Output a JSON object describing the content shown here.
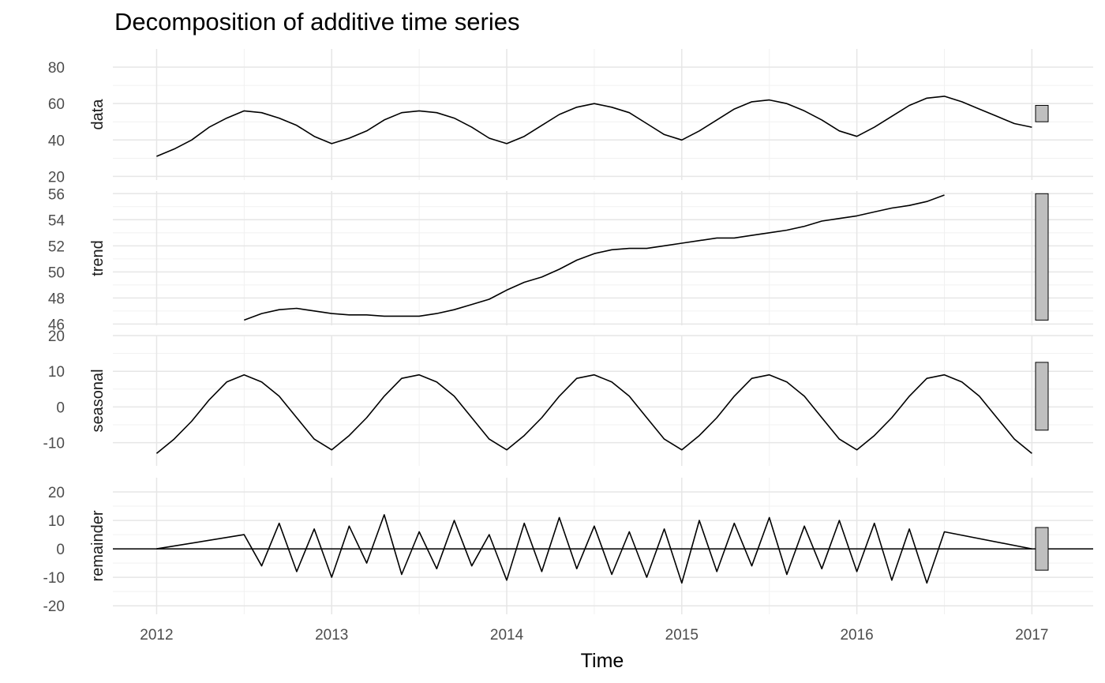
{
  "chart_data": {
    "type": "line",
    "title": "Decomposition of additive time series",
    "xlabel": "Time",
    "x_ticks": [
      2012,
      2013,
      2014,
      2015,
      2016,
      2017
    ],
    "xlim": [
      2011.75,
      2017.35
    ],
    "grid": true,
    "panels": [
      {
        "name": "data",
        "ylabel": "data",
        "ylim": [
          18,
          90
        ],
        "y_ticks": [
          20,
          40,
          60,
          80
        ],
        "x": [
          2012.0,
          2012.1,
          2012.2,
          2012.3,
          2012.4,
          2012.5,
          2012.6,
          2012.7,
          2012.8,
          2012.9,
          2013.0,
          2013.1,
          2013.2,
          2013.3,
          2013.4,
          2013.5,
          2013.6,
          2013.7,
          2013.8,
          2013.9,
          2014.0,
          2014.1,
          2014.2,
          2014.3,
          2014.4,
          2014.5,
          2014.6,
          2014.7,
          2014.8,
          2014.9,
          2015.0,
          2015.1,
          2015.2,
          2015.3,
          2015.4,
          2015.5,
          2015.6,
          2015.7,
          2015.8,
          2015.9,
          2016.0,
          2016.1,
          2016.2,
          2016.3,
          2016.4,
          2016.5,
          2016.6,
          2016.7,
          2016.8,
          2016.9,
          2017.0
        ],
        "values": [
          31,
          35,
          40,
          47,
          52,
          56,
          55,
          52,
          48,
          42,
          38,
          41,
          45,
          51,
          55,
          56,
          55,
          52,
          47,
          41,
          38,
          42,
          48,
          54,
          58,
          60,
          58,
          55,
          49,
          43,
          40,
          45,
          51,
          57,
          61,
          62,
          60,
          56,
          51,
          45,
          42,
          47,
          53,
          59,
          63,
          64,
          61,
          57,
          53,
          49,
          47
        ],
        "range_bar": [
          50,
          59
        ]
      },
      {
        "name": "trend",
        "ylabel": "trend",
        "ylim": [
          45.9,
          56.2
        ],
        "y_ticks": [
          46,
          48,
          50,
          52,
          54,
          56
        ],
        "x": [
          2012.5,
          2012.6,
          2012.7,
          2012.8,
          2012.9,
          2013.0,
          2013.1,
          2013.2,
          2013.3,
          2013.4,
          2013.5,
          2013.6,
          2013.7,
          2013.8,
          2013.9,
          2014.0,
          2014.1,
          2014.2,
          2014.3,
          2014.4,
          2014.5,
          2014.6,
          2014.7,
          2014.8,
          2014.9,
          2015.0,
          2015.1,
          2015.2,
          2015.3,
          2015.4,
          2015.5,
          2015.6,
          2015.7,
          2015.8,
          2015.9,
          2016.0,
          2016.1,
          2016.2,
          2016.3,
          2016.4,
          2016.5
        ],
        "values": [
          46.3,
          46.8,
          47.1,
          47.2,
          47.0,
          46.8,
          46.7,
          46.7,
          46.6,
          46.6,
          46.6,
          46.8,
          47.1,
          47.5,
          47.9,
          48.6,
          49.2,
          49.6,
          50.2,
          50.9,
          51.4,
          51.7,
          51.8,
          51.8,
          52.0,
          52.2,
          52.4,
          52.6,
          52.6,
          52.8,
          53.0,
          53.2,
          53.5,
          53.9,
          54.1,
          54.3,
          54.6,
          54.9,
          55.1,
          55.4,
          55.9
        ],
        "range_bar": [
          46.3,
          56.0
        ]
      },
      {
        "name": "seasonal",
        "ylabel": "seasonal",
        "ylim": [
          -16.5,
          20
        ],
        "y_ticks": [
          -10,
          0,
          10,
          20
        ],
        "x": [
          2012.0,
          2012.1,
          2012.2,
          2012.3,
          2012.4,
          2012.5,
          2012.6,
          2012.7,
          2012.8,
          2012.9,
          2013.0,
          2013.1,
          2013.2,
          2013.3,
          2013.4,
          2013.5,
          2013.6,
          2013.7,
          2013.8,
          2013.9,
          2014.0,
          2014.1,
          2014.2,
          2014.3,
          2014.4,
          2014.5,
          2014.6,
          2014.7,
          2014.8,
          2014.9,
          2015.0,
          2015.1,
          2015.2,
          2015.3,
          2015.4,
          2015.5,
          2015.6,
          2015.7,
          2015.8,
          2015.9,
          2016.0,
          2016.1,
          2016.2,
          2016.3,
          2016.4,
          2016.5,
          2016.6,
          2016.7,
          2016.8,
          2016.9,
          2017.0
        ],
        "values": [
          -13,
          -9,
          -4,
          2,
          7,
          9,
          7,
          3,
          -3,
          -9,
          -12,
          -8,
          -3,
          3,
          8,
          9,
          7,
          3,
          -3,
          -9,
          -12,
          -8,
          -3,
          3,
          8,
          9,
          7,
          3,
          -3,
          -9,
          -12,
          -8,
          -3,
          3,
          8,
          9,
          7,
          3,
          -3,
          -9,
          -12,
          -8,
          -3,
          3,
          8,
          9,
          7,
          3,
          -3,
          -9,
          -13
        ],
        "range_bar": [
          -6.5,
          12.5
        ]
      },
      {
        "name": "remainder",
        "ylabel": "remainder",
        "ylim": [
          -23,
          25
        ],
        "y_ticks": [
          -20,
          -10,
          0,
          10,
          20
        ],
        "x": [
          2012.0,
          2012.5,
          2012.6,
          2012.7,
          2012.8,
          2012.9,
          2013.0,
          2013.1,
          2013.2,
          2013.3,
          2013.4,
          2013.5,
          2013.6,
          2013.7,
          2013.8,
          2013.9,
          2014.0,
          2014.1,
          2014.2,
          2014.3,
          2014.4,
          2014.5,
          2014.6,
          2014.7,
          2014.8,
          2014.9,
          2015.0,
          2015.1,
          2015.2,
          2015.3,
          2015.4,
          2015.5,
          2015.6,
          2015.7,
          2015.8,
          2015.9,
          2016.0,
          2016.1,
          2016.2,
          2016.3,
          2016.4,
          2016.5,
          2017.0
        ],
        "values": [
          0,
          5,
          -6,
          9,
          -8,
          7,
          -10,
          8,
          -5,
          12,
          -9,
          6,
          -7,
          10,
          -6,
          5,
          -11,
          9,
          -8,
          11,
          -7,
          8,
          -9,
          6,
          -10,
          7,
          -12,
          10,
          -8,
          9,
          -6,
          11,
          -9,
          8,
          -7,
          10,
          -8,
          9,
          -11,
          7,
          -12,
          6,
          0
        ],
        "zero_line": 0,
        "range_bar": [
          -7.5,
          7.5
        ]
      }
    ]
  }
}
